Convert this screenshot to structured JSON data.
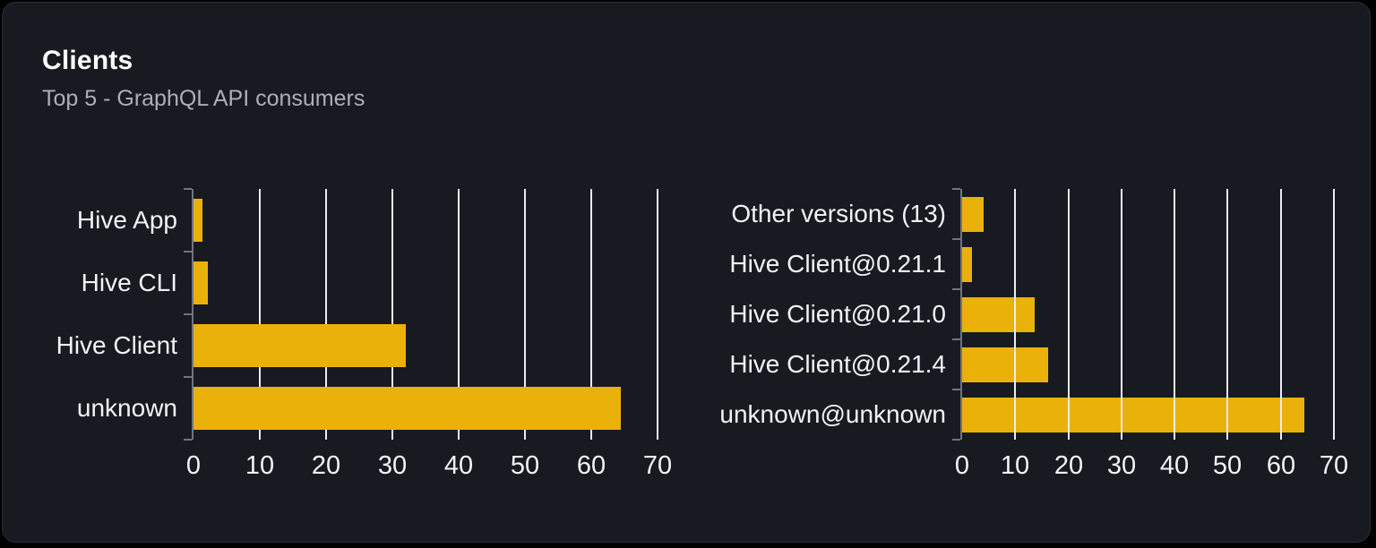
{
  "card": {
    "title": "Clients",
    "subtitle": "Top 5 - GraphQL API consumers"
  },
  "colors": {
    "page_bg": "#000000",
    "card_bg": "#171a20",
    "card_border": "#2a2e37",
    "bar": "#e9b10a",
    "gridline": "#e9ecf2",
    "axis": "#6f747e",
    "label_text": "#f2f3f6",
    "subtitle_text": "#abb0b8",
    "title_text": "#ffffff"
  },
  "chart_data": [
    {
      "type": "bar",
      "orientation": "horizontal",
      "categories": [
        "Hive App",
        "Hive CLI",
        "Hive Client",
        "unknown"
      ],
      "values": [
        1.4,
        2.2,
        32,
        64.4
      ],
      "xlim": [
        0,
        70
      ],
      "xticks": [
        0,
        10,
        20,
        30,
        40,
        50,
        60,
        70
      ],
      "grid": true,
      "grid_in_front_of_bars": false,
      "legend_position": "none"
    },
    {
      "type": "bar",
      "orientation": "horizontal",
      "categories": [
        "Other versions (13)",
        "Hive Client@0.21.1",
        "Hive Client@0.21.0",
        "Hive Client@0.21.4",
        "unknown@unknown"
      ],
      "values": [
        4,
        1.9,
        13.6,
        16.2,
        64.5
      ],
      "xlim": [
        0,
        70
      ],
      "xticks": [
        0,
        10,
        20,
        30,
        40,
        50,
        60,
        70
      ],
      "grid": true,
      "grid_in_front_of_bars": true,
      "legend_position": "none"
    }
  ]
}
